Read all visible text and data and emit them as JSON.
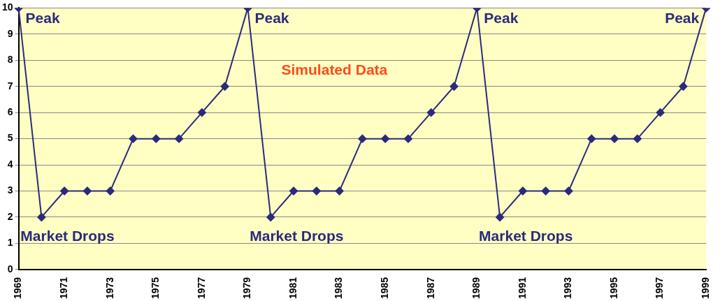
{
  "chart_data": {
    "type": "line",
    "categories": [
      "1969",
      null,
      "1971",
      null,
      "1973",
      null,
      "1975",
      null,
      "1977",
      null,
      "1979",
      null,
      "1981",
      null,
      "1983",
      null,
      "1985",
      null,
      "1987",
      null,
      "1989",
      null,
      "1991",
      null,
      "1993",
      null,
      "1995",
      null,
      "1997",
      null,
      "1999"
    ],
    "series": [
      {
        "color": "#2b2a7c",
        "values": [
          10,
          2,
          3,
          3,
          3,
          5,
          5,
          5,
          6,
          7,
          10,
          2,
          3,
          3,
          3,
          5,
          5,
          5,
          6,
          7,
          10,
          2,
          3,
          3,
          3,
          5,
          5,
          5,
          6,
          7,
          10
        ]
      }
    ],
    "ylim": [
      0,
      10
    ],
    "yticks": [
      0,
      1,
      2,
      3,
      4,
      5,
      6,
      7,
      8,
      9,
      10
    ],
    "grid": "y",
    "marker": "diamond",
    "legend": false,
    "annotations": [
      {
        "text": "Peak",
        "x": "1969",
        "y": 10
      },
      "Market Drops",
      {
        "text": "Peak",
        "x": "1979",
        "y": 10
      },
      "Market Drops",
      {
        "text": "Peak",
        "x": "1989",
        "y": 10
      },
      "Market Drops",
      {
        "text": "Peak",
        "x": "1999",
        "y": 10
      },
      "Simulated Data"
    ]
  }
}
